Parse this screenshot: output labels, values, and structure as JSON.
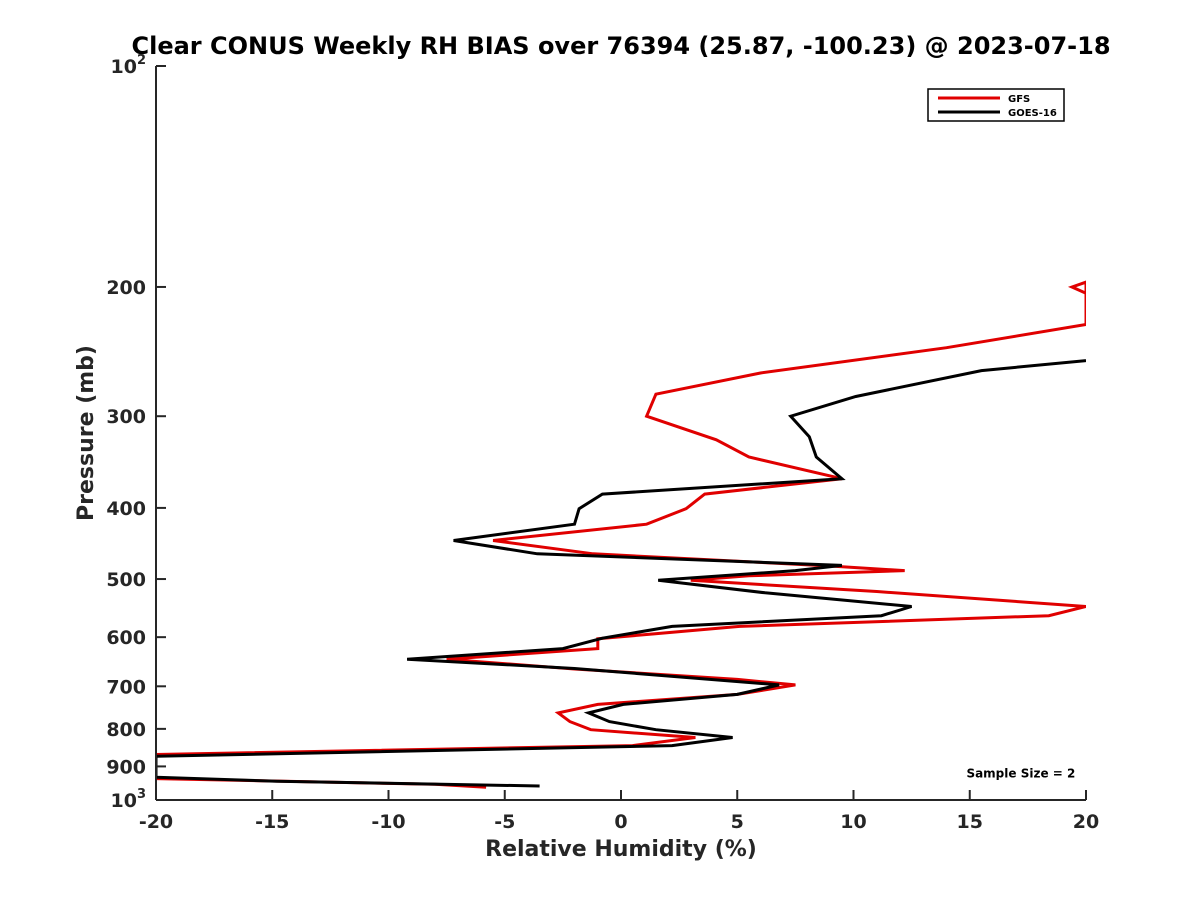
{
  "chart_data": {
    "type": "line",
    "title": "Clear CONUS Weekly RH BIAS over 76394 (25.87, -100.23) @ 2023-07-18",
    "xlabel": "Relative Humidity (%)",
    "ylabel": "Pressure (mb)",
    "xlim": [
      -20,
      20
    ],
    "ylim": [
      100,
      1000
    ],
    "yscale": "log",
    "y_reversed": true,
    "grid": false,
    "legend_position": "top-right",
    "x_ticks": [
      {
        "value": -20,
        "label": "-20"
      },
      {
        "value": -15,
        "label": "-15"
      },
      {
        "value": -10,
        "label": "-10"
      },
      {
        "value": -5,
        "label": "-5"
      },
      {
        "value": 0,
        "label": "0"
      },
      {
        "value": 5,
        "label": "5"
      },
      {
        "value": 10,
        "label": "10"
      },
      {
        "value": 15,
        "label": "15"
      },
      {
        "value": 20,
        "label": "20"
      }
    ],
    "y_ticks": [
      {
        "value": 100,
        "base": "10",
        "sup": "2"
      },
      {
        "value": 200,
        "base": "200",
        "sup": ""
      },
      {
        "value": 300,
        "base": "300",
        "sup": ""
      },
      {
        "value": 400,
        "base": "400",
        "sup": ""
      },
      {
        "value": 500,
        "base": "500",
        "sup": ""
      },
      {
        "value": 600,
        "base": "600",
        "sup": ""
      },
      {
        "value": 700,
        "base": "700",
        "sup": ""
      },
      {
        "value": 800,
        "base": "800",
        "sup": ""
      },
      {
        "value": 900,
        "base": "900",
        "sup": ""
      },
      {
        "value": 1000,
        "base": "10",
        "sup": "3"
      }
    ],
    "series": [
      {
        "name": "GFS",
        "color": "#e00000",
        "points": [
          [
            20.0,
            204
          ],
          [
            19.4,
            200
          ],
          [
            20.0,
            197
          ],
          [
            20.0,
            225
          ],
          [
            14.0,
            242
          ],
          [
            6.0,
            262
          ],
          [
            1.5,
            280
          ],
          [
            1.1,
            300
          ],
          [
            4.1,
            323
          ],
          [
            5.5,
            341
          ],
          [
            9.5,
            365
          ],
          [
            3.6,
            383
          ],
          [
            2.8,
            401
          ],
          [
            1.1,
            421
          ],
          [
            -5.5,
            443
          ],
          [
            -1.2,
            462
          ],
          [
            9.0,
            480
          ],
          [
            12.2,
            487
          ],
          [
            5.5,
            495
          ],
          [
            3.0,
            502
          ],
          [
            11.0,
            520
          ],
          [
            20.0,
            545
          ],
          [
            18.4,
            561
          ],
          [
            5.1,
            580
          ],
          [
            -1.0,
            603
          ],
          [
            -1.0,
            622
          ],
          [
            -7.5,
            643
          ],
          [
            -2.0,
            663
          ],
          [
            5.0,
            685
          ],
          [
            7.5,
            697
          ],
          [
            5.0,
            718
          ],
          [
            -1.0,
            741
          ],
          [
            -2.7,
            761
          ],
          [
            -2.2,
            782
          ],
          [
            -1.3,
            802
          ],
          [
            3.2,
            822
          ],
          [
            0.5,
            843
          ],
          [
            -20.0,
            867
          ],
          [
            -20.0,
            935
          ],
          [
            -8.0,
            952
          ],
          [
            -5.8,
            961
          ]
        ]
      },
      {
        "name": "GOES-16",
        "color": "#000000",
        "points": [
          [
            20.0,
            252
          ],
          [
            15.5,
            260
          ],
          [
            10.1,
            282
          ],
          [
            7.3,
            300
          ],
          [
            8.1,
            320
          ],
          [
            8.4,
            341
          ],
          [
            9.5,
            365
          ],
          [
            -0.8,
            383
          ],
          [
            -1.8,
            401
          ],
          [
            -2.0,
            421
          ],
          [
            -7.2,
            443
          ],
          [
            -3.6,
            462
          ],
          [
            9.5,
            479
          ],
          [
            7.5,
            487
          ],
          [
            1.6,
            502
          ],
          [
            6.2,
            522
          ],
          [
            12.5,
            545
          ],
          [
            11.2,
            561
          ],
          [
            2.2,
            580
          ],
          [
            -0.8,
            602
          ],
          [
            -2.5,
            622
          ],
          [
            -9.2,
            643
          ],
          [
            -2.0,
            662
          ],
          [
            6.8,
            697
          ],
          [
            5.0,
            718
          ],
          [
            0.1,
            741
          ],
          [
            -1.4,
            761
          ],
          [
            -0.5,
            782
          ],
          [
            1.5,
            802
          ],
          [
            4.8,
            822
          ],
          [
            2.2,
            843
          ],
          [
            -20.0,
            872
          ],
          [
            -20.0,
            931
          ],
          [
            -14.8,
            943
          ],
          [
            -3.5,
            957
          ]
        ]
      }
    ],
    "annotations": [
      {
        "text": "Sample Size = 2",
        "x": 17.2,
        "y": 920
      }
    ]
  }
}
